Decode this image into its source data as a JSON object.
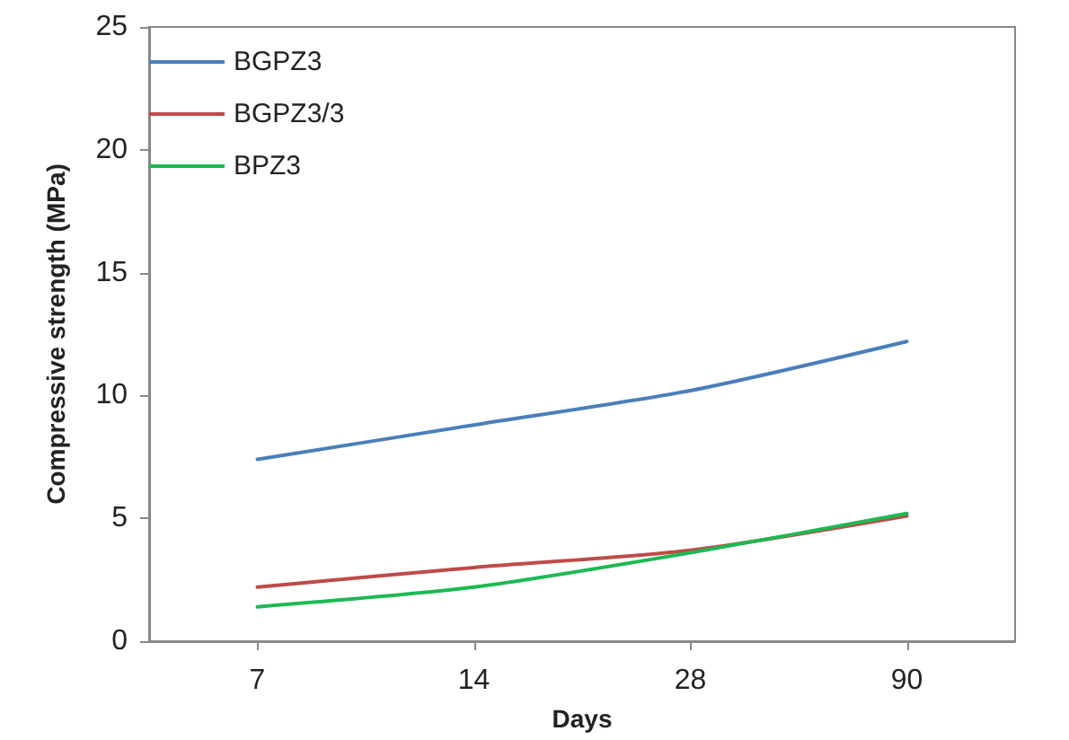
{
  "chart_data": {
    "type": "line",
    "xlabel": "Days",
    "ylabel": "Compressive strength (MPa)",
    "categories": [
      "7",
      "14",
      "28",
      "90"
    ],
    "series": [
      {
        "name": "BGPZ3",
        "color": "#4a7ebb",
        "values": [
          7.4,
          8.8,
          10.2,
          12.2
        ]
      },
      {
        "name": "BGPZ3/3",
        "color": "#be4b48",
        "values": [
          2.2,
          3.0,
          3.7,
          5.1
        ]
      },
      {
        "name": "BPZ3",
        "color": "#1db954",
        "values": [
          1.4,
          2.2,
          3.6,
          5.2
        ]
      }
    ],
    "ylim": [
      0,
      25
    ],
    "yticks": [
      0,
      5,
      10,
      15,
      20,
      25
    ],
    "grid": false,
    "legend": "top left",
    "marker": "none",
    "line_style": "solid"
  }
}
